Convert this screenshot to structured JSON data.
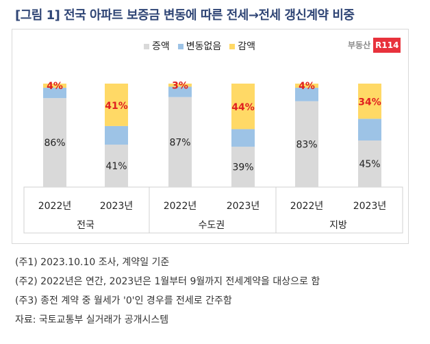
{
  "title": "[그림 1] 전국 아파트 보증금 변동에 따른 전세→전세 갱신계약 비중",
  "logo": {
    "text": "부동산",
    "badge": "R114"
  },
  "chart_data": {
    "type": "bar",
    "stacked": true,
    "ylim": [
      0,
      100
    ],
    "groups": [
      "전국",
      "수도권",
      "지방"
    ],
    "categories": [
      "2022년",
      "2023년",
      "2022년",
      "2023년",
      "2022년",
      "2023년"
    ],
    "series": [
      {
        "name": "증액",
        "color": "#d9d9d9",
        "values": [
          86,
          41,
          87,
          39,
          83,
          45
        ],
        "labels": [
          "86%",
          "41%",
          "87%",
          "39%",
          "83%",
          "45%"
        ]
      },
      {
        "name": "변동없음",
        "color": "#9dc3e6",
        "values": [
          10,
          18,
          10,
          17,
          13,
          21
        ]
      },
      {
        "name": "감액",
        "color": "#ffd966",
        "values": [
          4,
          41,
          3,
          44,
          4,
          34
        ],
        "labels": [
          "4%",
          "41%",
          "3%",
          "44%",
          "4%",
          "34%"
        ],
        "label_color": "#e02020"
      }
    ],
    "legend": "top"
  },
  "notes": [
    "(주1) 2023.10.10 조사, 계약일 기준",
    "(주2) 2022년은 연간, 2023년은 1월부터 9월까지 전세계약을 대상으로 함",
    "(주3) 종전 계약 중 월세가 '0'인 경우를 전세로 간주함",
    "자료: 국토교통부 실거래가 공개시스템"
  ]
}
